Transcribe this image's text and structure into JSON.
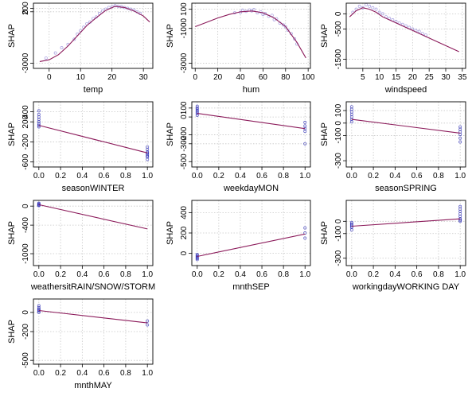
{
  "colors": {
    "points": "#8a7fd6",
    "points_dark": "#1f1fb0",
    "fit_line": "#8b1a5a",
    "grid": "#c8c8c8",
    "axes": "#000000",
    "background": "#ffffff"
  },
  "chart_data": [
    {
      "type": "scatter",
      "feature": "temp",
      "xlabel": "temp",
      "ylabel": "SHAP",
      "xticks": [
        0,
        10,
        20,
        30
      ],
      "yticks": [
        -3000,
        0,
        200
      ],
      "xlim": [
        -5,
        33
      ],
      "ylim": [
        -3300,
        500
      ],
      "fit": {
        "x": [
          -3,
          0,
          3,
          6,
          9,
          12,
          15,
          18,
          21,
          24,
          27,
          30,
          32
        ],
        "y": [
          -2900,
          -2800,
          -2500,
          -2000,
          -1400,
          -800,
          -350,
          80,
          320,
          250,
          50,
          -250,
          -600
        ]
      },
      "points_x": [
        -1,
        2,
        4,
        6,
        8,
        9,
        10,
        11,
        12,
        13,
        14,
        15,
        16,
        17,
        18,
        19,
        20,
        21,
        22,
        23,
        24,
        25,
        26,
        27,
        28,
        29
      ],
      "points_y": [
        -2700,
        -2400,
        -2100,
        -1900,
        -1600,
        -1300,
        -1100,
        -900,
        -700,
        -600,
        -400,
        -300,
        -100,
        50,
        150,
        250,
        300,
        350,
        320,
        300,
        250,
        200,
        150,
        100,
        0,
        -100
      ]
    },
    {
      "type": "scatter",
      "feature": "hum",
      "xlabel": "hum",
      "ylabel": "SHAP",
      "xticks": [
        0,
        20,
        40,
        60,
        80,
        100
      ],
      "yticks": [
        -3000,
        -1000,
        100
      ],
      "xlim": [
        -3,
        102
      ],
      "ylim": [
        -3300,
        450
      ],
      "fit": {
        "x": [
          0,
          10,
          20,
          30,
          40,
          50,
          60,
          70,
          80,
          90,
          98
        ],
        "y": [
          -900,
          -650,
          -400,
          -200,
          -50,
          0,
          -100,
          -400,
          -900,
          -1800,
          -2700
        ]
      },
      "points_x": [
        35,
        40,
        42,
        45,
        48,
        50,
        52,
        55,
        58,
        60,
        62,
        65,
        68,
        70,
        72,
        75,
        78,
        80,
        82,
        85,
        88,
        90
      ],
      "points_y": [
        -100,
        -80,
        50,
        -20,
        60,
        10,
        80,
        -100,
        -50,
        -200,
        -150,
        -300,
        -250,
        -500,
        -450,
        -700,
        -800,
        -900,
        -1100,
        -1300,
        -1600,
        -1900
      ]
    },
    {
      "type": "scatter",
      "feature": "windspeed",
      "xlabel": "windspeed",
      "ylabel": "SHAP",
      "xticks": [
        5,
        10,
        15,
        20,
        25,
        30,
        35
      ],
      "yticks": [
        -1500,
        -500,
        0
      ],
      "xlim": [
        0,
        36
      ],
      "ylim": [
        -1800,
        350
      ],
      "fit": {
        "x": [
          1,
          3,
          5,
          7,
          9,
          11,
          13,
          15,
          17,
          20,
          25,
          30,
          34
        ],
        "y": [
          -100,
          100,
          200,
          150,
          50,
          -100,
          -200,
          -300,
          -400,
          -550,
          -800,
          -1050,
          -1250
        ]
      },
      "points_x": [
        2,
        3,
        4,
        5,
        6,
        7,
        8,
        9,
        10,
        11,
        12,
        13,
        14,
        15,
        16,
        17,
        18,
        19,
        20,
        21,
        22,
        23,
        24
      ],
      "points_y": [
        50,
        150,
        250,
        200,
        300,
        250,
        200,
        150,
        50,
        0,
        -100,
        -150,
        -200,
        -250,
        -300,
        -350,
        -400,
        -450,
        -500,
        -550,
        -580,
        -650,
        -700
      ]
    },
    {
      "type": "scatter",
      "feature": "seasonWINTER",
      "xlabel": "seasonWINTER",
      "ylabel": "SHAP",
      "xticks": [
        0.0,
        0.2,
        0.4,
        0.6,
        0.8,
        1.0
      ],
      "xtick_labels": [
        "0.0",
        "0.2",
        "0.4",
        "0.6",
        "0.8",
        "1.0"
      ],
      "yticks": [
        -600,
        -200,
        200,
        400
      ],
      "xlim": [
        -0.05,
        1.05
      ],
      "ylim": [
        -700,
        600
      ],
      "fit": {
        "x": [
          0,
          1
        ],
        "y": [
          130,
          -420
        ]
      },
      "points_x": [
        0,
        0,
        0,
        0,
        0,
        0,
        0,
        0,
        1,
        1,
        1,
        1,
        1,
        1,
        1,
        1
      ],
      "points_y": [
        100,
        130,
        160,
        200,
        250,
        300,
        350,
        420,
        -300,
        -350,
        -400,
        -420,
        -450,
        -480,
        -500,
        -550
      ]
    },
    {
      "type": "scatter",
      "feature": "weekdayMON",
      "xlabel": "weekdayMON",
      "ylabel": "SHAP",
      "xticks": [
        0.0,
        0.2,
        0.4,
        0.6,
        0.8,
        1.0
      ],
      "xtick_labels": [
        "0.0",
        "0.2",
        "0.4",
        "0.6",
        "0.8",
        "1.0"
      ],
      "yticks": [
        -500,
        -300,
        -200,
        0,
        100
      ],
      "xlim": [
        -0.05,
        1.05
      ],
      "ylim": [
        -560,
        170
      ],
      "fit": {
        "x": [
          0,
          1
        ],
        "y": [
          40,
          -130
        ]
      },
      "points_x": [
        0,
        0,
        0,
        0,
        0,
        0,
        0,
        1,
        1,
        1,
        1,
        1
      ],
      "points_y": [
        20,
        40,
        55,
        70,
        85,
        100,
        120,
        -60,
        -100,
        -130,
        -160,
        -300
      ]
    },
    {
      "type": "scatter",
      "feature": "seasonSPRING",
      "xlabel": "seasonSPRING",
      "ylabel": "SHAP",
      "xticks": [
        0.0,
        0.2,
        0.4,
        0.6,
        0.8,
        1.0
      ],
      "xtick_labels": [
        "0.0",
        "0.2",
        "0.4",
        "0.6",
        "0.8",
        "1.0"
      ],
      "yticks": [
        -300,
        -100,
        0,
        100
      ],
      "xlim": [
        -0.05,
        1.05
      ],
      "ylim": [
        -350,
        170
      ],
      "fit": {
        "x": [
          0,
          1
        ],
        "y": [
          30,
          -80
        ]
      },
      "points_x": [
        0,
        0,
        0,
        0,
        0,
        0,
        0,
        1,
        1,
        1,
        1,
        1,
        1
      ],
      "points_y": [
        10,
        30,
        50,
        70,
        90,
        110,
        130,
        -30,
        -50,
        -70,
        -90,
        -120,
        -150
      ]
    },
    {
      "type": "scatter",
      "feature": "weathersitRAIN/SNOW/STORM",
      "xlabel": "weathersitRAIN/SNOW/STORM",
      "ylabel": "SHAP",
      "xticks": [
        0.0,
        0.2,
        0.4,
        0.6,
        0.8,
        1.0
      ],
      "xtick_labels": [
        "0.0",
        "0.2",
        "0.4",
        "0.6",
        "0.8",
        "1.0"
      ],
      "yticks": [
        -1000,
        -400,
        0
      ],
      "xlim": [
        -0.05,
        1.05
      ],
      "ylim": [
        -1250,
        120
      ],
      "fit": {
        "x": [
          0,
          1
        ],
        "y": [
          30,
          -480
        ]
      },
      "points_x": [
        0,
        0,
        0,
        0,
        0
      ],
      "points_y": [
        10,
        20,
        30,
        45,
        60
      ]
    },
    {
      "type": "scatter",
      "feature": "mnthSEP",
      "xlabel": "mnthSEP",
      "ylabel": "SHAP",
      "xticks": [
        0.0,
        0.2,
        0.4,
        0.6,
        0.8,
        1.0
      ],
      "xtick_labels": [
        "0.0",
        "0.2",
        "0.4",
        "0.6",
        "0.8",
        "1.0"
      ],
      "yticks": [
        0,
        200,
        400
      ],
      "xlim": [
        -0.05,
        1.05
      ],
      "ylim": [
        -120,
        520
      ],
      "fit": {
        "x": [
          0,
          1
        ],
        "y": [
          -30,
          190
        ]
      },
      "points_x": [
        0,
        0,
        0,
        0,
        0,
        0,
        1,
        1,
        1
      ],
      "points_y": [
        -60,
        -50,
        -40,
        -30,
        -20,
        -10,
        150,
        200,
        250
      ]
    },
    {
      "type": "scatter",
      "feature": "workingdayWORKING DAY",
      "xlabel": "workingdayWORKING DAY",
      "ylabel": "SHAP",
      "xticks": [
        0.0,
        0.2,
        0.4,
        0.6,
        0.8,
        1.0
      ],
      "xtick_labels": [
        "0.0",
        "0.2",
        "0.4",
        "0.6",
        "0.8",
        "1.0"
      ],
      "yticks": [
        -300,
        -100,
        0
      ],
      "xlim": [
        -0.05,
        1.05
      ],
      "ylim": [
        -360,
        170
      ],
      "fit": {
        "x": [
          0,
          1
        ],
        "y": [
          -40,
          20
        ]
      },
      "points_x": [
        0,
        0,
        0,
        0,
        0,
        0,
        1,
        1,
        1,
        1,
        1,
        1,
        1,
        1
      ],
      "points_y": [
        -70,
        -50,
        -40,
        -30,
        -20,
        -10,
        0,
        10,
        20,
        40,
        60,
        80,
        100,
        120
      ]
    },
    {
      "type": "scatter",
      "feature": "mnthMAY",
      "xlabel": "mnthMAY",
      "ylabel": "SHAP",
      "xticks": [
        0.0,
        0.2,
        0.4,
        0.6,
        0.8,
        1.0
      ],
      "xtick_labels": [
        "0.0",
        "0.2",
        "0.4",
        "0.6",
        "0.8",
        "1.0"
      ],
      "yticks": [
        -500,
        -200,
        0
      ],
      "xlim": [
        -0.05,
        1.05
      ],
      "ylim": [
        -540,
        140
      ],
      "fit": {
        "x": [
          0,
          1
        ],
        "y": [
          20,
          -110
        ]
      },
      "points_x": [
        0,
        0,
        0,
        0,
        0,
        0,
        1,
        1
      ],
      "points_y": [
        0,
        15,
        25,
        35,
        50,
        70,
        -90,
        -130
      ]
    }
  ]
}
